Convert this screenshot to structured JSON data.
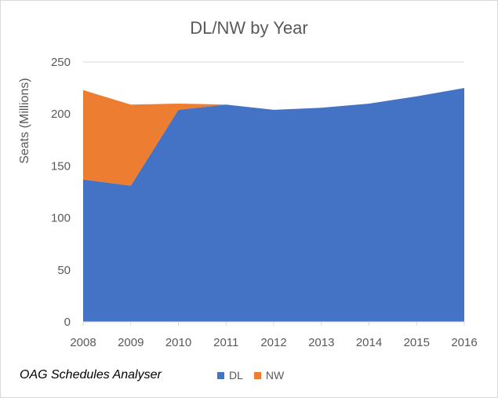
{
  "chart_data": {
    "type": "area",
    "title": "DL/NW by Year",
    "xlabel": "",
    "ylabel": "Seats (Millions)",
    "x": [
      "2008",
      "2009",
      "2010",
      "2011",
      "2012",
      "2013",
      "2014",
      "2015",
      "2016"
    ],
    "series": [
      {
        "name": "DL",
        "values": [
          137,
          131,
          204,
          209,
          204,
          206,
          210,
          217,
          225
        ]
      },
      {
        "name": "NW",
        "values": [
          86,
          78,
          6,
          0,
          0,
          0,
          0,
          0,
          0
        ]
      }
    ],
    "stacked": true,
    "ylim": [
      0,
      250
    ],
    "yticks": [
      "0",
      "50",
      "100",
      "150",
      "200",
      "250"
    ],
    "grid": true,
    "legend_position": "bottom",
    "colors": {
      "DL": "#4472c4",
      "NW": "#ed7d31",
      "grid": "#d9d9d9",
      "text": "#595959"
    }
  },
  "source_note": "OAG Schedules Analyser"
}
